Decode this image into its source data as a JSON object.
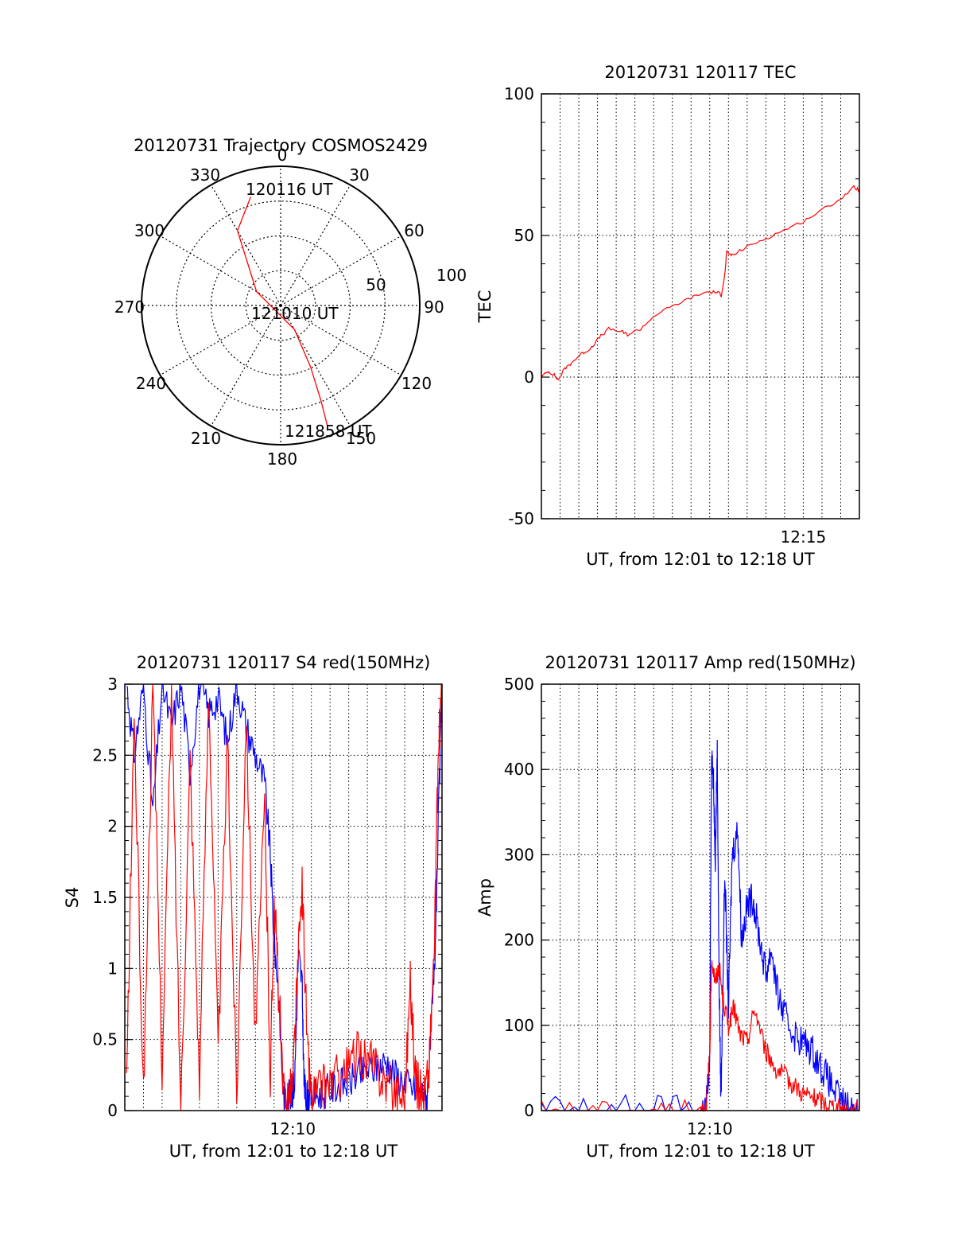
{
  "colors": {
    "red": "#ff0000",
    "blue": "#0000ff",
    "axis": "#000000",
    "grid": "#000000"
  },
  "chart_data": [
    {
      "type": "polar",
      "title": "20120731 Trajectory COSMOS2429",
      "azimuth_labels": [
        "0",
        "30",
        "60",
        "90",
        "120",
        "150",
        "180",
        "210",
        "240",
        "270",
        "300",
        "330"
      ],
      "radial_labels": [
        "50",
        "100"
      ],
      "grid": true,
      "series": [
        {
          "color": "#ff0000",
          "points": [
            [
              344.6,
              81
            ],
            [
              330,
              62
            ],
            [
              300,
              20
            ],
            [
              150,
              20
            ],
            [
              154,
              49
            ],
            [
              157,
              74
            ],
            [
              158.7,
              92
            ]
          ]
        }
      ],
      "annotations": [
        "120116 UT",
        "121010 UT",
        "121858 UT"
      ]
    },
    {
      "type": "line",
      "title": "20120731 120117 TEC",
      "xlabel": "UT, from 12:01 to 12:18 UT",
      "ylabel": "TEC",
      "xlim": [
        0,
        17
      ],
      "ylim": [
        -50,
        100
      ],
      "ytick_labels": [
        "-50",
        "0",
        "50",
        "100"
      ],
      "xtick_labels": [
        "12:15"
      ],
      "xtick_positions": [
        14
      ],
      "grid": true,
      "series": [
        {
          "color": "#ff0000",
          "x": [
            0,
            0.35,
            0.65,
            0.9,
            1.25,
            1.6,
            2.1,
            2.6,
            3.1,
            3.6,
            4.3,
            4.6,
            5.3,
            6.1,
            7.0,
            8.0,
            8.8,
            9.4,
            9.62,
            9.82,
            9.9,
            10.2,
            11.0,
            12.0,
            13.0,
            14.0,
            15.0,
            16.0,
            16.7,
            17.0
          ],
          "y": [
            0,
            2,
            1,
            -1,
            3,
            5,
            8,
            10,
            14,
            17,
            16,
            15,
            17,
            22,
            25,
            28,
            30,
            30,
            29,
            37,
            44,
            43,
            46,
            49,
            52,
            55,
            59,
            63,
            67,
            66
          ]
        }
      ]
    },
    {
      "type": "line",
      "title": "20120731 120117 S4 red(150MHz)",
      "xlabel": "UT, from 12:01 to 12:18 UT",
      "ylabel": "S4",
      "xlim": [
        0,
        17
      ],
      "ylim": [
        0,
        3
      ],
      "ytick_labels": [
        "0",
        "0.5",
        "1",
        "1.5",
        "2",
        "2.5",
        "3"
      ],
      "xtick_labels": [
        "12:10"
      ],
      "xtick_positions": [
        9
      ],
      "grid": true,
      "series": [
        {
          "color": "#0000ff",
          "x": [
            0.1,
            0.5,
            1.0,
            1.5,
            2.0,
            2.5,
            3.0,
            3.5,
            4.0,
            4.5,
            5.0,
            5.5,
            6.0,
            6.5,
            7.0,
            7.5,
            7.8,
            8.0,
            8.2,
            8.5,
            8.7,
            8.9,
            9.1,
            9.3,
            9.5,
            9.6,
            9.7,
            9.8,
            10.0,
            10.5,
            11.0,
            11.5,
            12.0,
            12.5,
            13.0,
            13.5,
            14.0,
            14.5,
            15.0,
            15.5,
            16.0,
            16.2,
            16.4,
            16.6,
            16.8,
            17.0
          ],
          "y": [
            3.0,
            2.5,
            3.0,
            2.1,
            3.0,
            2.7,
            3.0,
            2.4,
            3.0,
            2.8,
            2.9,
            2.6,
            3.0,
            2.7,
            2.5,
            2.3,
            1.8,
            1.2,
            0.9,
            0.1,
            0.1,
            0.1,
            0.2,
            1.1,
            0.9,
            0.2,
            0.1,
            0.1,
            0.1,
            0.12,
            0.15,
            0.18,
            0.2,
            0.25,
            0.28,
            0.3,
            0.35,
            0.25,
            0.2,
            0.15,
            0.12,
            0.1,
            0.5,
            1.0,
            2.0,
            3.0
          ]
        },
        {
          "color": "#ff0000",
          "x": [
            0.1,
            0.5,
            1.0,
            1.5,
            2.0,
            2.5,
            3.0,
            3.5,
            4.0,
            4.5,
            5.0,
            5.5,
            6.0,
            6.5,
            7.0,
            7.5,
            7.8,
            8.0,
            8.2,
            8.5,
            8.7,
            9.0,
            9.2,
            9.5,
            9.8,
            10.0,
            10.5,
            11.0,
            11.5,
            12.0,
            12.5,
            13.0,
            13.5,
            14.0,
            14.5,
            15.0,
            15.3,
            15.6,
            16.0,
            16.3,
            16.6,
            16.8,
            17.0
          ],
          "y": [
            0.2,
            2.8,
            0.1,
            3.0,
            0.3,
            2.9,
            0.0,
            2.5,
            0.2,
            3.0,
            0.4,
            2.6,
            0.1,
            2.8,
            0.5,
            2.2,
            0.2,
            1.5,
            1.0,
            0.1,
            0.1,
            0.2,
            0.8,
            1.6,
            0.4,
            0.1,
            0.15,
            0.2,
            0.25,
            0.3,
            0.4,
            0.35,
            0.3,
            0.2,
            0.15,
            0.1,
            0.9,
            0.2,
            0.1,
            0.3,
            1.2,
            2.5,
            3.0
          ]
        }
      ]
    },
    {
      "type": "line",
      "title": "20120731 120117 Amp red(150MHz)",
      "xlabel": "UT, from 12:01 to 12:18 UT",
      "ylabel": "Amp",
      "xlim": [
        0,
        17
      ],
      "ylim": [
        0,
        500
      ],
      "ytick_labels": [
        "0",
        "100",
        "200",
        "300",
        "400",
        "500"
      ],
      "xtick_labels": [
        "12:10"
      ],
      "xtick_positions": [
        9
      ],
      "grid": true,
      "series": [
        {
          "color": "#0000ff",
          "x": [
            0,
            3,
            6,
            8.5,
            8.8,
            9.0,
            9.1,
            9.2,
            9.3,
            9.4,
            9.5,
            9.6,
            9.8,
            10.0,
            10.2,
            10.5,
            10.7,
            11.0,
            11.3,
            11.6,
            12.0,
            12.3,
            12.6,
            13.0,
            13.5,
            14.0,
            14.5,
            15.0,
            15.5,
            16.0,
            16.5,
            17.0
          ],
          "y": [
            0,
            0,
            0,
            0,
            5,
            60,
            430,
            380,
            300,
            420,
            150,
            10,
            280,
            120,
            300,
            330,
            200,
            240,
            250,
            210,
            160,
            190,
            140,
            110,
            90,
            80,
            70,
            50,
            30,
            10,
            2,
            0
          ]
        },
        {
          "color": "#ff0000",
          "x": [
            0,
            3,
            6,
            8.5,
            8.8,
            9.0,
            9.1,
            9.3,
            9.5,
            9.7,
            10.0,
            10.3,
            10.6,
            11.0,
            11.4,
            12.0,
            12.5,
            13.0,
            13.5,
            14.0,
            14.5,
            15.0,
            15.5,
            16.0,
            16.5,
            17.0
          ],
          "y": [
            0,
            0,
            0,
            0,
            5,
            60,
            180,
            150,
            170,
            130,
            100,
            120,
            90,
            80,
            120,
            70,
            50,
            40,
            30,
            20,
            15,
            10,
            5,
            2,
            0,
            0
          ]
        }
      ]
    }
  ]
}
